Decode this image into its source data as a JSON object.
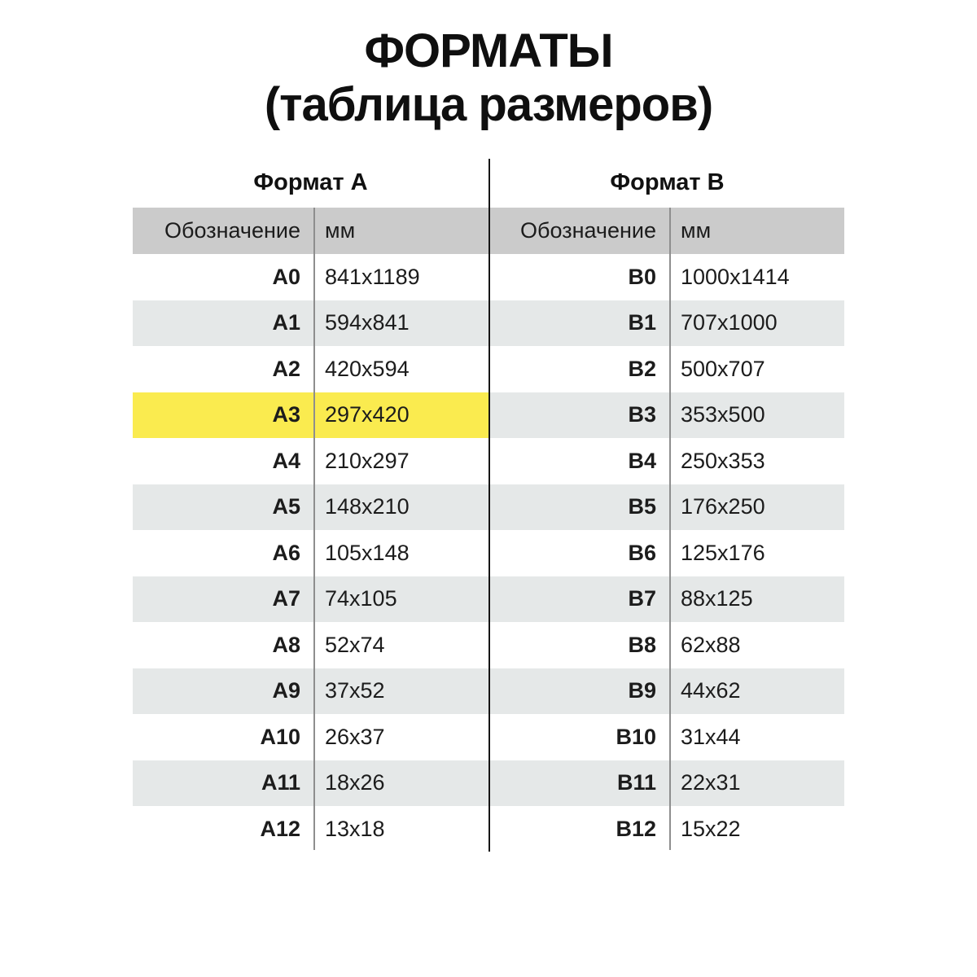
{
  "title": {
    "line1": "ФОРМАТЫ",
    "line2": "(таблица размеров)"
  },
  "columns": {
    "designation": "Обозначение",
    "mm": "мм"
  },
  "format_a": {
    "header": "Формат А",
    "rows": [
      {
        "code": "A0",
        "size": "841x1189"
      },
      {
        "code": "A1",
        "size": "594x841"
      },
      {
        "code": "A2",
        "size": "420x594"
      },
      {
        "code": "A3",
        "size": "297x420"
      },
      {
        "code": "A4",
        "size": "210x297"
      },
      {
        "code": "A5",
        "size": "148x210"
      },
      {
        "code": "A6",
        "size": "105x148"
      },
      {
        "code": "A7",
        "size": "74x105"
      },
      {
        "code": "A8",
        "size": "52x74"
      },
      {
        "code": "A9",
        "size": "37x52"
      },
      {
        "code": "A10",
        "size": "26x37"
      },
      {
        "code": "A11",
        "size": "18x26"
      },
      {
        "code": "A12",
        "size": "13x18"
      }
    ]
  },
  "format_b": {
    "header": "Формат В",
    "rows": [
      {
        "code": "B0",
        "size": "1000x1414"
      },
      {
        "code": "B1",
        "size": "707x1000"
      },
      {
        "code": "B2",
        "size": "500x707"
      },
      {
        "code": "B3",
        "size": "353x500"
      },
      {
        "code": "B4",
        "size": "250x353"
      },
      {
        "code": "B5",
        "size": "176x250"
      },
      {
        "code": "B6",
        "size": "125x176"
      },
      {
        "code": "B7",
        "size": "88x125"
      },
      {
        "code": "B8",
        "size": "62x88"
      },
      {
        "code": "B9",
        "size": "44x62"
      },
      {
        "code": "B10",
        "size": "31x44"
      },
      {
        "code": "B11",
        "size": "22x31"
      },
      {
        "code": "B12",
        "size": "15x22"
      }
    ]
  },
  "highlight": {
    "row": "A3",
    "scope": "left-half-only"
  },
  "colors": {
    "header_bg": "#CBCBCB",
    "stripe_bg": "#E5E8E8",
    "highlight_bg": "#FAEB4F",
    "divider": "#161616",
    "separator": "#8E8E8E",
    "text": "#1C1C1C"
  },
  "chart_data": [
    {
      "type": "table",
      "title": "Формат А",
      "columns": [
        "Обозначение",
        "мм"
      ],
      "rows": [
        [
          "A0",
          "841x1189"
        ],
        [
          "A1",
          "594x841"
        ],
        [
          "A2",
          "420x594"
        ],
        [
          "A3",
          "297x420"
        ],
        [
          "A4",
          "210x297"
        ],
        [
          "A5",
          "148x210"
        ],
        [
          "A6",
          "105x148"
        ],
        [
          "A7",
          "74x105"
        ],
        [
          "A8",
          "52x74"
        ],
        [
          "A9",
          "37x52"
        ],
        [
          "A10",
          "26x37"
        ],
        [
          "A11",
          "18x26"
        ],
        [
          "A12",
          "13x18"
        ]
      ],
      "highlighted_row": "A3"
    },
    {
      "type": "table",
      "title": "Формат В",
      "columns": [
        "Обозначение",
        "мм"
      ],
      "rows": [
        [
          "B0",
          "1000x1414"
        ],
        [
          "B1",
          "707x1000"
        ],
        [
          "B2",
          "500x707"
        ],
        [
          "B3",
          "353x500"
        ],
        [
          "B4",
          "250x353"
        ],
        [
          "B5",
          "176x250"
        ],
        [
          "B6",
          "125x176"
        ],
        [
          "B7",
          "88x125"
        ],
        [
          "B8",
          "62x88"
        ],
        [
          "B9",
          "44x62"
        ],
        [
          "B10",
          "31x44"
        ],
        [
          "B11",
          "22x31"
        ],
        [
          "B12",
          "15x22"
        ]
      ],
      "highlighted_row": null
    }
  ]
}
